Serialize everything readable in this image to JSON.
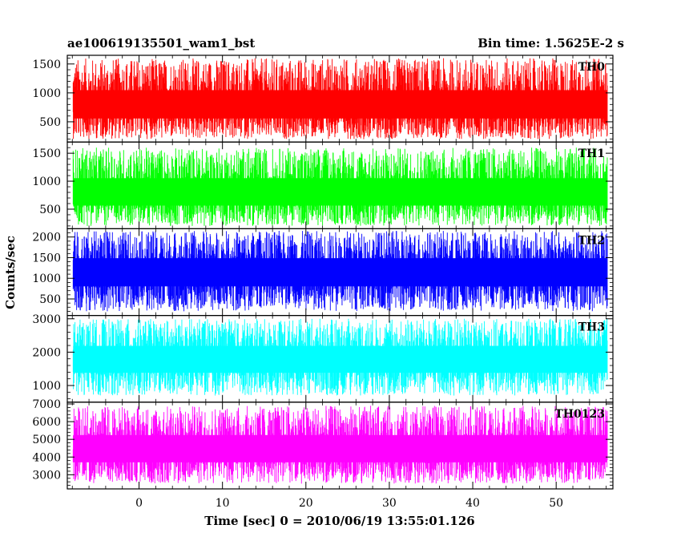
{
  "header": {
    "left_title": "ae100619135501_wam1_bst",
    "right_title": "Bin time: 1.5625E-2 s"
  },
  "ylabel": "Counts/sec",
  "xlabel": "Time [sec] 0 = 2010/06/19 13:55:01.126",
  "chart_data": {
    "type": "line",
    "xlim": [
      -8.6,
      56.8
    ],
    "x_ticks": [
      0,
      10,
      20,
      30,
      40,
      50
    ],
    "x_range_data": [
      -7.9,
      56.1
    ],
    "series": [
      {
        "name": "TH0",
        "color": "#ff0000",
        "ylim": [
          150,
          1650
        ],
        "y_ticks": [
          500,
          1000,
          1500
        ],
        "y_range": [
          200,
          1600
        ],
        "mean": 750
      },
      {
        "name": "TH1",
        "color": "#00ff00",
        "ylim": [
          150,
          1700
        ],
        "y_ticks": [
          500,
          1000,
          1500
        ],
        "y_range": [
          200,
          1600
        ],
        "mean": 760
      },
      {
        "name": "TH2",
        "color": "#0000ff",
        "ylim": [
          100,
          2200
        ],
        "y_ticks": [
          500,
          1000,
          1500,
          2000
        ],
        "y_range": [
          200,
          2150
        ],
        "mean": 1130
      },
      {
        "name": "TH3",
        "color": "#00ffff",
        "ylim": [
          500,
          3100
        ],
        "y_ticks": [
          1000,
          2000,
          3000
        ],
        "y_range": [
          700,
          3000
        ],
        "mean": 1750
      },
      {
        "name": "TH0123",
        "color": "#ff00ff",
        "ylim": [
          2200,
          7100
        ],
        "y_ticks": [
          3000,
          4000,
          5000,
          6000,
          7000
        ],
        "y_range": [
          2500,
          6900
        ],
        "mean": 4350
      }
    ]
  }
}
